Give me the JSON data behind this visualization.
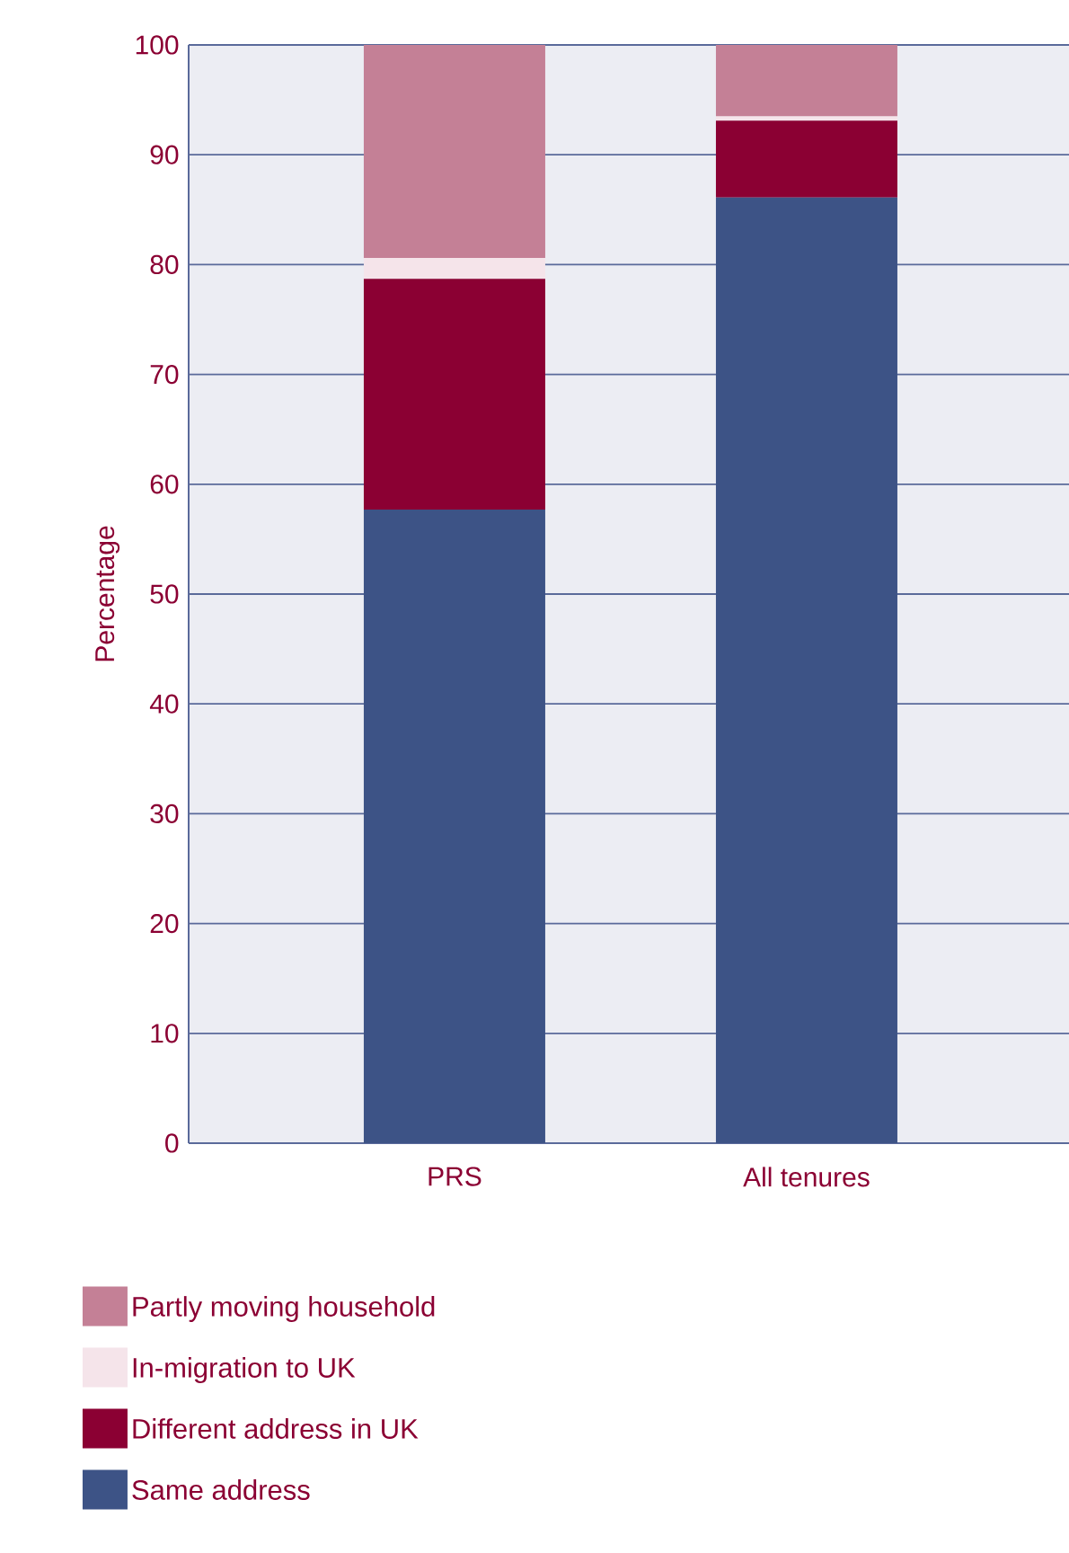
{
  "chart_data": {
    "type": "bar",
    "stacked": true,
    "ylabel": "Percentage",
    "categories": [
      "PRS",
      "All tenures"
    ],
    "series": [
      {
        "name": "Same address",
        "color": "#3d5386",
        "values": [
          57.7,
          86.1
        ]
      },
      {
        "name": "Different address in UK",
        "color": "#8b0033",
        "values": [
          21.0,
          7.0
        ]
      },
      {
        "name": "In-migration to UK",
        "color": "#f5e4ea",
        "values": [
          1.9,
          0.4
        ]
      },
      {
        "name": "Partly moving household",
        "color": "#c48096",
        "values": [
          19.4,
          6.5
        ]
      }
    ],
    "ylim": [
      0,
      100
    ],
    "yticks": [
      0,
      10,
      20,
      30,
      40,
      50,
      60,
      70,
      80,
      90,
      100
    ],
    "grid": "y",
    "legend": "bottom left"
  }
}
